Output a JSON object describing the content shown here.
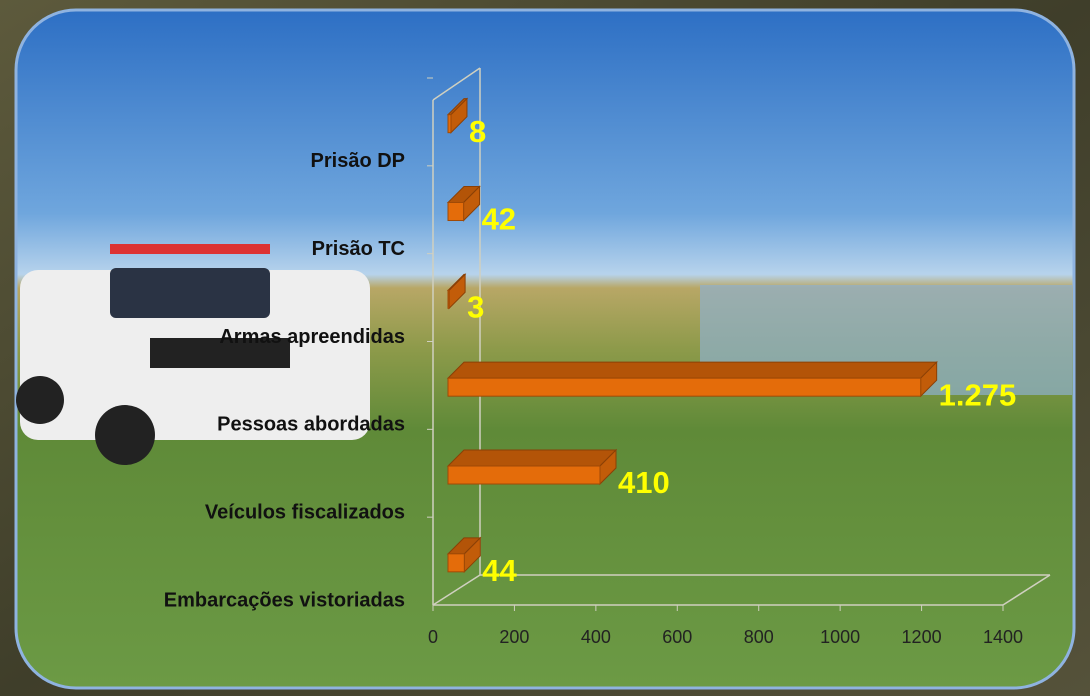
{
  "chart_data": {
    "type": "bar3d_horizontal",
    "categories": [
      "Prisão DP",
      "Prisão TC",
      "Armas apreendidas",
      "Pessoas abordadas",
      "Veículos fiscalizados",
      "Embarcações vistoriadas"
    ],
    "values": [
      8,
      42,
      3,
      1275,
      410,
      44
    ],
    "value_labels": [
      "8",
      "42",
      "3",
      "1.275",
      "410",
      "44"
    ],
    "color": "#e46c0a",
    "xlim": [
      0,
      1400
    ],
    "xticks": [
      0,
      200,
      400,
      600,
      800,
      1000,
      1200,
      1400
    ]
  }
}
